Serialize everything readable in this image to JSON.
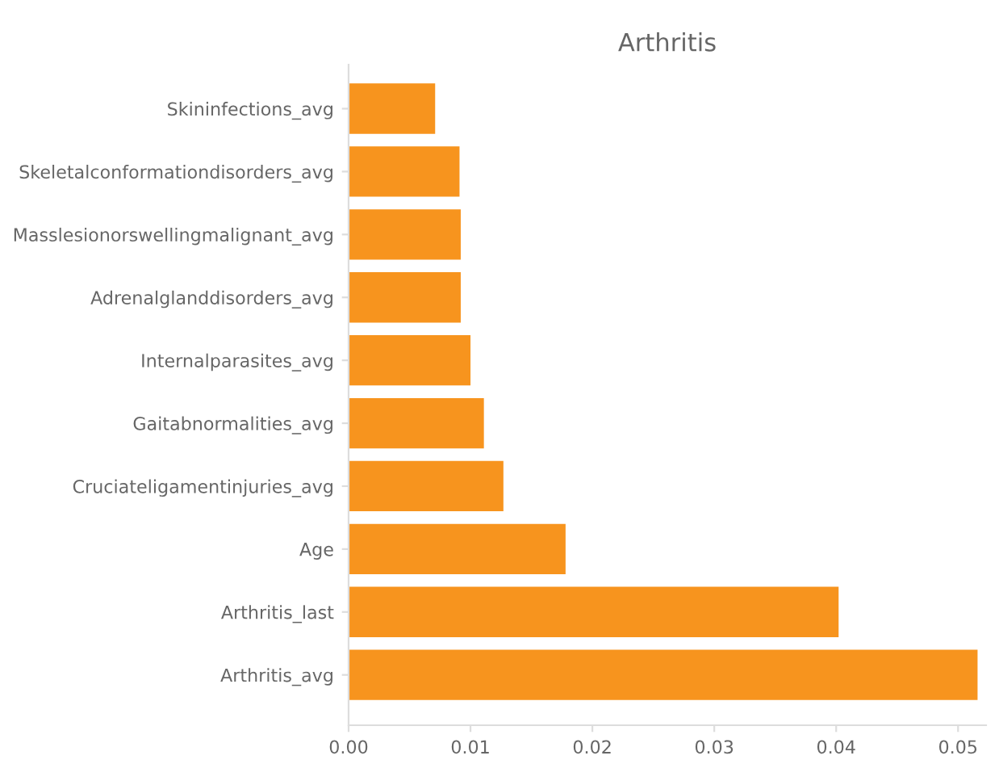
{
  "chart_data": {
    "type": "bar",
    "orientation": "horizontal",
    "title": "Arthritis",
    "categories": [
      "Skininfections_avg",
      "Skeletalconformationdisorders_avg",
      "Masslesionorswellingmalignant_avg",
      "Adrenalglanddisorders_avg",
      "Internalparasites_avg",
      "Gaitabnormalities_avg",
      "Cruciateligamentinjuries_avg",
      "Age",
      "Arthritis_last",
      "Arthritis_avg"
    ],
    "values": [
      0.0071,
      0.0091,
      0.0092,
      0.0092,
      0.01,
      0.0111,
      0.0127,
      0.0178,
      0.0402,
      0.0516
    ],
    "color": "#f7941e",
    "xlim": [
      0,
      0.0523
    ],
    "xticks": [
      {
        "value": 0,
        "label": "0.00"
      },
      {
        "value": 0.01,
        "label": "0.01"
      },
      {
        "value": 0.02,
        "label": "0.02"
      },
      {
        "value": 0.03,
        "label": "0.03"
      },
      {
        "value": 0.04,
        "label": "0.04"
      },
      {
        "value": 0.05,
        "label": "0.05"
      }
    ],
    "grid": false
  }
}
